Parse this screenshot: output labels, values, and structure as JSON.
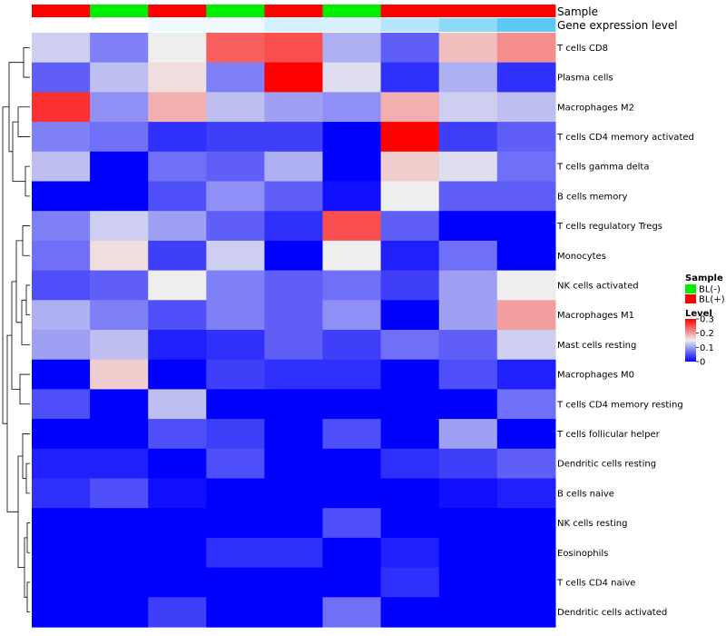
{
  "chart_data": {
    "type": "heatmap",
    "title": "",
    "annotation_labels": {
      "sample": "Sample",
      "expression": "Gene expression level"
    },
    "sample_groups": [
      "BL(+)",
      "BL(-)",
      "BL(+)",
      "BL(-)",
      "BL(+)",
      "BL(-)",
      "BL(+)",
      "BL(+)",
      "BL(+)"
    ],
    "gene_expression_level": [
      0.0,
      0.0,
      0.1,
      0.1,
      0.25,
      0.25,
      0.45,
      0.7,
      1.0
    ],
    "rows": [
      "T cells CD8",
      "Plasma cells",
      "Macrophages M2",
      "T cells CD4 memory activated",
      "T cells gamma delta",
      "B cells memory",
      "T cells regulatory  Tregs",
      "Monocytes",
      "NK cells activated",
      "Macrophages M1",
      "Mast cells resting",
      "Macrophages M0",
      "T cells CD4 memory resting",
      "T cells follicular helper",
      "Dendritic cells resting",
      "B cells naive",
      "NK cells resting",
      "Eosinophils",
      "T cells CD4 naive",
      "Dendritic cells activated"
    ],
    "values": [
      [
        0.13,
        0.08,
        0.15,
        0.24,
        0.25,
        0.11,
        0.06,
        0.18,
        0.21
      ],
      [
        0.06,
        0.12,
        0.16,
        0.08,
        0.3,
        0.14,
        0.03,
        0.11,
        0.03
      ],
      [
        0.27,
        0.09,
        0.19,
        0.12,
        0.1,
        0.09,
        0.19,
        0.13,
        0.12
      ],
      [
        0.08,
        0.07,
        0.03,
        0.04,
        0.04,
        0.0,
        0.3,
        0.04,
        0.06
      ],
      [
        0.12,
        0.0,
        0.07,
        0.06,
        0.11,
        0.0,
        0.17,
        0.14,
        0.07
      ],
      [
        0.0,
        0.0,
        0.05,
        0.09,
        0.06,
        0.01,
        0.15,
        0.06,
        0.06
      ],
      [
        0.08,
        0.13,
        0.1,
        0.06,
        0.03,
        0.25,
        0.06,
        0.0,
        0.0
      ],
      [
        0.07,
        0.16,
        0.04,
        0.13,
        0.0,
        0.15,
        0.02,
        0.07,
        0.0
      ],
      [
        0.05,
        0.06,
        0.15,
        0.08,
        0.06,
        0.07,
        0.04,
        0.1,
        0.15
      ],
      [
        0.11,
        0.08,
        0.05,
        0.08,
        0.06,
        0.09,
        0.0,
        0.1,
        0.2
      ],
      [
        0.1,
        0.12,
        0.02,
        0.03,
        0.06,
        0.04,
        0.07,
        0.06,
        0.13
      ],
      [
        0.0,
        0.17,
        0.0,
        0.04,
        0.03,
        0.03,
        0.0,
        0.05,
        0.02
      ],
      [
        0.05,
        0.0,
        0.12,
        0.0,
        0.0,
        0.0,
        0.0,
        0.0,
        0.07
      ],
      [
        0.0,
        0.0,
        0.05,
        0.04,
        0.0,
        0.05,
        0.0,
        0.1,
        0.0
      ],
      [
        0.02,
        0.02,
        0.0,
        0.05,
        0.0,
        0.0,
        0.03,
        0.04,
        0.06
      ],
      [
        0.03,
        0.05,
        0.01,
        0.0,
        0.0,
        0.0,
        0.0,
        0.01,
        0.02
      ],
      [
        0.0,
        0.0,
        0.0,
        0.0,
        0.0,
        0.05,
        0.0,
        0.0,
        0.0
      ],
      [
        0.0,
        0.0,
        0.0,
        0.03,
        0.03,
        0.0,
        0.02,
        0.0,
        0.0
      ],
      [
        0.0,
        0.0,
        0.0,
        0.0,
        0.0,
        0.0,
        0.03,
        0.0,
        0.0
      ],
      [
        0.0,
        0.0,
        0.04,
        0.0,
        0.0,
        0.07,
        0.0,
        0.0,
        0.0
      ]
    ],
    "color_scale": {
      "min": 0,
      "mid": 0.15,
      "max": 0.3,
      "low": "#0000ff",
      "mid_color": "#eeeeee",
      "high": "#ff0000"
    },
    "legend": {
      "sample_title": "Sample",
      "sample_items": [
        {
          "label": "BL(-)",
          "color": "#00ee00"
        },
        {
          "label": "BL(+)",
          "color": "#ff0000"
        }
      ],
      "level_title": "Level",
      "level_ticks": [
        0.3,
        0.2,
        0.1,
        0
      ],
      "level_tick_labels": [
        "0.3",
        "0.2",
        "0.1",
        "0"
      ],
      "placement": "right"
    }
  }
}
